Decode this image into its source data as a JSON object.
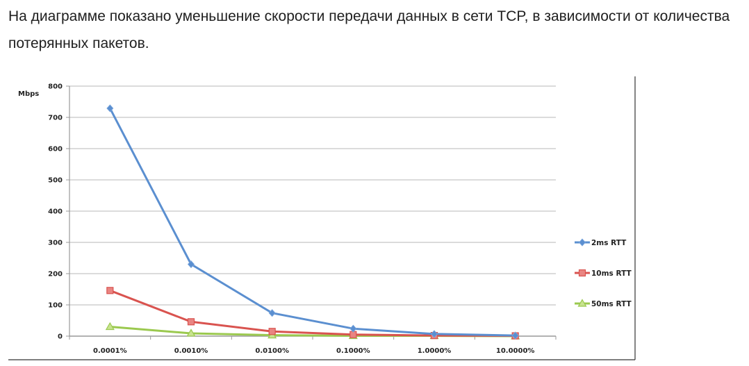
{
  "intro_text": "На диаграмме показано уменьшение скорости передачи данных в сети TCP, в зависимости от количества потерянных пакетов.",
  "chart_data": {
    "type": "line",
    "title": "",
    "xlabel": "",
    "ylabel": "Mbps",
    "categories": [
      "0.0001%",
      "0.0010%",
      "0.0100%",
      "0.1000%",
      "1.0000%",
      "10.0000%"
    ],
    "ylim": [
      0,
      800
    ],
    "yticks": [
      0,
      100,
      200,
      300,
      400,
      500,
      600,
      700,
      800
    ],
    "grid": true,
    "legend_position": "right",
    "series": [
      {
        "name": "2ms RTT",
        "color": "#5b8fd0",
        "marker": "diamond",
        "values": [
          729,
          230,
          74,
          24,
          7,
          2
        ]
      },
      {
        "name": "10ms RTT",
        "color": "#d9534f",
        "marker": "square",
        "values": [
          146,
          46,
          15,
          5,
          2,
          1
        ]
      },
      {
        "name": "50ms RTT",
        "color": "#9bc94f",
        "marker": "triangle",
        "values": [
          30,
          9,
          3,
          1,
          1,
          0
        ]
      }
    ]
  }
}
